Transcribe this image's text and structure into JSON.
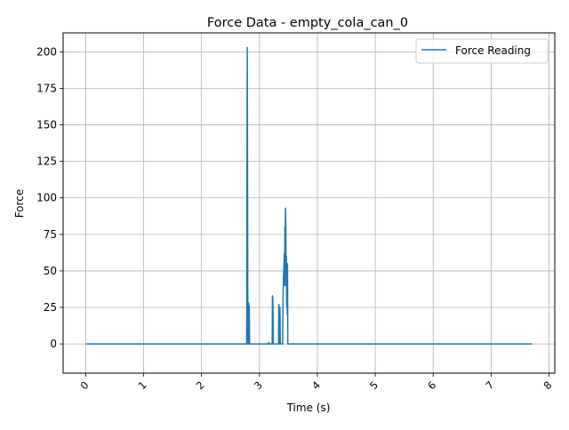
{
  "chart_data": {
    "type": "line",
    "title": "Force Data - empty_cola_can_0",
    "xlabel": "Time (s)",
    "ylabel": "Force",
    "xlim": [
      -0.39,
      8.1
    ],
    "ylim": [
      -20,
      213
    ],
    "x_ticks": [
      0,
      1,
      2,
      3,
      4,
      5,
      6,
      7,
      8
    ],
    "x_tick_labels": [
      "0",
      "1",
      "2",
      "3",
      "4",
      "5",
      "6",
      "7",
      "8"
    ],
    "y_ticks": [
      0,
      25,
      50,
      75,
      100,
      125,
      150,
      175,
      200
    ],
    "y_tick_labels": [
      "0",
      "25",
      "50",
      "75",
      "100",
      "125",
      "150",
      "175",
      "200"
    ],
    "grid": true,
    "legend_position": "top-right",
    "line_color": "#1f77b4",
    "series": [
      {
        "name": "Force Reading",
        "x": [
          0.0,
          2.77,
          2.78,
          2.785,
          2.79,
          2.795,
          2.8,
          2.805,
          2.81,
          2.815,
          2.82,
          2.825,
          2.83,
          2.835,
          2.84,
          3.15,
          3.16,
          3.17,
          3.18,
          3.21,
          3.22,
          3.225,
          3.23,
          3.235,
          3.24,
          3.245,
          3.25,
          3.33,
          3.335,
          3.34,
          3.345,
          3.35,
          3.355,
          3.36,
          3.37,
          3.38,
          3.39,
          3.4,
          3.41,
          3.415,
          3.42,
          3.425,
          3.43,
          3.435,
          3.44,
          3.445,
          3.45,
          3.455,
          3.46,
          3.465,
          3.47,
          3.475,
          3.48,
          3.485,
          3.49,
          3.495,
          3.5,
          3.51,
          7.71
        ],
        "values": [
          0,
          0,
          0,
          120,
          203,
          120,
          0,
          28,
          0,
          28,
          0,
          26,
          0,
          0,
          0,
          0,
          1,
          0,
          0,
          0,
          0,
          33,
          32,
          25,
          0,
          0,
          0,
          0,
          27,
          25,
          0,
          0,
          25,
          0,
          0,
          0,
          0,
          0,
          38,
          45,
          50,
          55,
          62,
          40,
          80,
          70,
          93,
          80,
          40,
          60,
          25,
          50,
          20,
          55,
          0,
          0,
          0,
          0,
          0
        ]
      }
    ]
  }
}
